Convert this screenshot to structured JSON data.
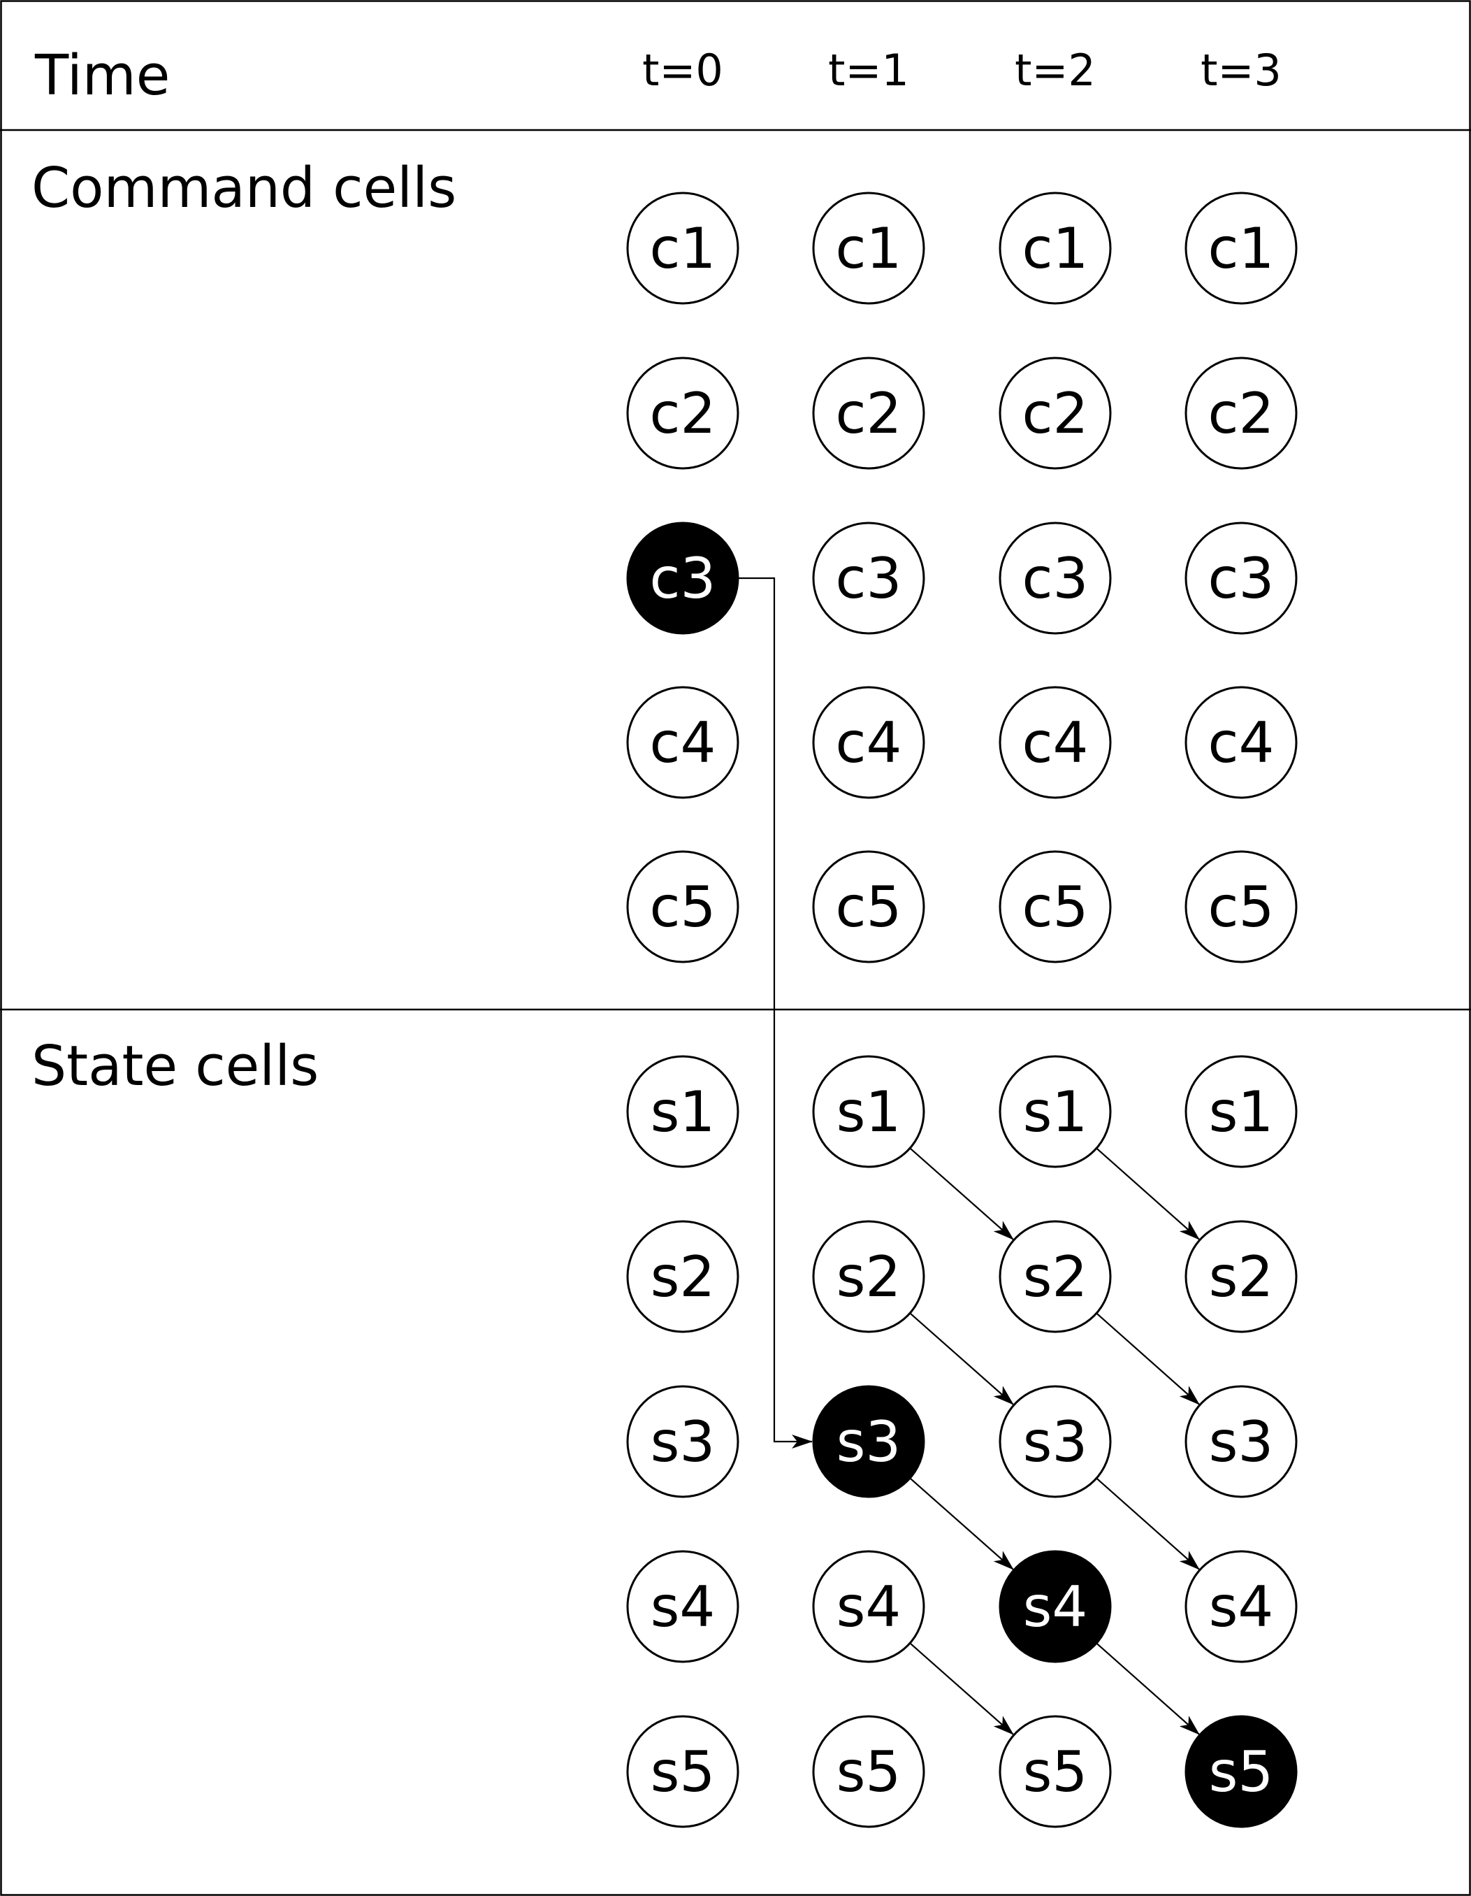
{
  "header": {
    "time_label": "Time",
    "time_steps": [
      "t=0",
      "t=1",
      "t=2",
      "t=3"
    ]
  },
  "sections": {
    "command": {
      "label": "Command cells"
    },
    "state": {
      "label": "State cells"
    }
  },
  "command_cells": [
    "c1",
    "c2",
    "c3",
    "c4",
    "c5"
  ],
  "state_cells": [
    "s1",
    "s2",
    "s3",
    "s4",
    "s5"
  ],
  "active_cells": [
    {
      "group": "command",
      "t": 0,
      "cell": "c3"
    },
    {
      "group": "state",
      "t": 1,
      "cell": "s3"
    },
    {
      "group": "state",
      "t": 2,
      "cell": "s4"
    },
    {
      "group": "state",
      "t": 3,
      "cell": "s5"
    }
  ],
  "connections": [
    {
      "from": {
        "group": "command",
        "t": 0,
        "cell": "c3"
      },
      "to": {
        "group": "state",
        "t": 1,
        "cell": "s3"
      },
      "style": "elbow"
    },
    {
      "from": {
        "group": "state",
        "t": 1,
        "cell": "s1"
      },
      "to": {
        "group": "state",
        "t": 2,
        "cell": "s2"
      },
      "style": "diagonal"
    },
    {
      "from": {
        "group": "state",
        "t": 1,
        "cell": "s2"
      },
      "to": {
        "group": "state",
        "t": 2,
        "cell": "s3"
      },
      "style": "diagonal"
    },
    {
      "from": {
        "group": "state",
        "t": 1,
        "cell": "s3"
      },
      "to": {
        "group": "state",
        "t": 2,
        "cell": "s4"
      },
      "style": "diagonal"
    },
    {
      "from": {
        "group": "state",
        "t": 1,
        "cell": "s4"
      },
      "to": {
        "group": "state",
        "t": 2,
        "cell": "s5"
      },
      "style": "diagonal"
    },
    {
      "from": {
        "group": "state",
        "t": 2,
        "cell": "s1"
      },
      "to": {
        "group": "state",
        "t": 3,
        "cell": "s2"
      },
      "style": "diagonal"
    },
    {
      "from": {
        "group": "state",
        "t": 2,
        "cell": "s2"
      },
      "to": {
        "group": "state",
        "t": 3,
        "cell": "s3"
      },
      "style": "diagonal"
    },
    {
      "from": {
        "group": "state",
        "t": 2,
        "cell": "s3"
      },
      "to": {
        "group": "state",
        "t": 3,
        "cell": "s4"
      },
      "style": "diagonal"
    },
    {
      "from": {
        "group": "state",
        "t": 2,
        "cell": "s4"
      },
      "to": {
        "group": "state",
        "t": 3,
        "cell": "s5"
      },
      "style": "diagonal"
    }
  ],
  "colors": {
    "line": "#000000",
    "active_fill": "#000000",
    "active_text": "#ffffff",
    "inactive_fill": "#ffffff",
    "inactive_text": "#000000"
  }
}
